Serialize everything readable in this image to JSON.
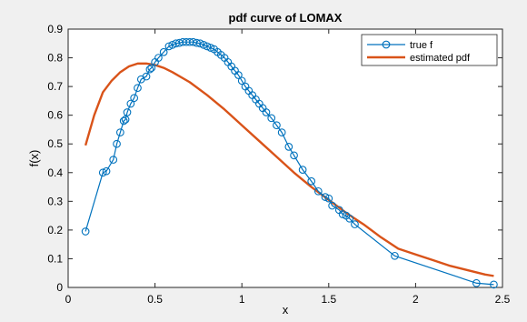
{
  "chart_data": {
    "type": "line",
    "title": "pdf curve of LOMAX",
    "xlabel": "x",
    "ylabel": "f(x)",
    "xlim": [
      0,
      2.5
    ],
    "ylim": [
      0,
      0.9
    ],
    "xticks": [
      "0",
      "0.5",
      "1",
      "1.5",
      "2",
      "2.5"
    ],
    "yticks": [
      "0",
      "0.1",
      "0.2",
      "0.3",
      "0.4",
      "0.5",
      "0.6",
      "0.7",
      "0.8",
      "0.9"
    ],
    "grid": false,
    "legend_position": "top-right",
    "series": [
      {
        "name": "true f",
        "color": "#0072bd",
        "marker": "circle",
        "x": [
          0.1,
          0.2,
          0.22,
          0.26,
          0.28,
          0.3,
          0.32,
          0.33,
          0.34,
          0.36,
          0.38,
          0.4,
          0.42,
          0.45,
          0.47,
          0.48,
          0.5,
          0.52,
          0.55,
          0.58,
          0.6,
          0.62,
          0.64,
          0.66,
          0.68,
          0.7,
          0.72,
          0.74,
          0.76,
          0.78,
          0.8,
          0.82,
          0.84,
          0.86,
          0.88,
          0.9,
          0.92,
          0.94,
          0.96,
          0.98,
          1.0,
          1.02,
          1.04,
          1.06,
          1.08,
          1.1,
          1.12,
          1.14,
          1.17,
          1.2,
          1.23,
          1.27,
          1.3,
          1.35,
          1.4,
          1.44,
          1.48,
          1.5,
          1.52,
          1.56,
          1.58,
          1.6,
          1.62,
          1.65,
          1.88,
          2.35,
          2.45
        ],
        "y": [
          0.195,
          0.4,
          0.405,
          0.445,
          0.5,
          0.54,
          0.58,
          0.585,
          0.61,
          0.64,
          0.66,
          0.695,
          0.725,
          0.735,
          0.76,
          0.765,
          0.785,
          0.8,
          0.82,
          0.84,
          0.845,
          0.85,
          0.852,
          0.855,
          0.855,
          0.855,
          0.855,
          0.852,
          0.85,
          0.845,
          0.84,
          0.835,
          0.83,
          0.82,
          0.81,
          0.8,
          0.785,
          0.77,
          0.755,
          0.74,
          0.72,
          0.7,
          0.685,
          0.67,
          0.655,
          0.64,
          0.625,
          0.61,
          0.59,
          0.565,
          0.54,
          0.49,
          0.46,
          0.41,
          0.37,
          0.335,
          0.315,
          0.31,
          0.285,
          0.27,
          0.255,
          0.25,
          0.24,
          0.22,
          0.11,
          0.015,
          0.01
        ]
      },
      {
        "name": "estimated pdf",
        "color": "#d95319",
        "marker": "none",
        "x": [
          0.1,
          0.15,
          0.2,
          0.25,
          0.3,
          0.35,
          0.4,
          0.45,
          0.5,
          0.55,
          0.6,
          0.7,
          0.8,
          0.9,
          1.0,
          1.1,
          1.2,
          1.3,
          1.4,
          1.5,
          1.6,
          1.7,
          1.8,
          1.9,
          2.0,
          2.1,
          2.2,
          2.3,
          2.4,
          2.45
        ],
        "y": [
          0.495,
          0.6,
          0.68,
          0.72,
          0.75,
          0.77,
          0.78,
          0.78,
          0.775,
          0.765,
          0.75,
          0.715,
          0.67,
          0.62,
          0.565,
          0.51,
          0.455,
          0.4,
          0.35,
          0.305,
          0.26,
          0.22,
          0.175,
          0.135,
          0.115,
          0.095,
          0.075,
          0.06,
          0.045,
          0.04
        ]
      }
    ]
  }
}
